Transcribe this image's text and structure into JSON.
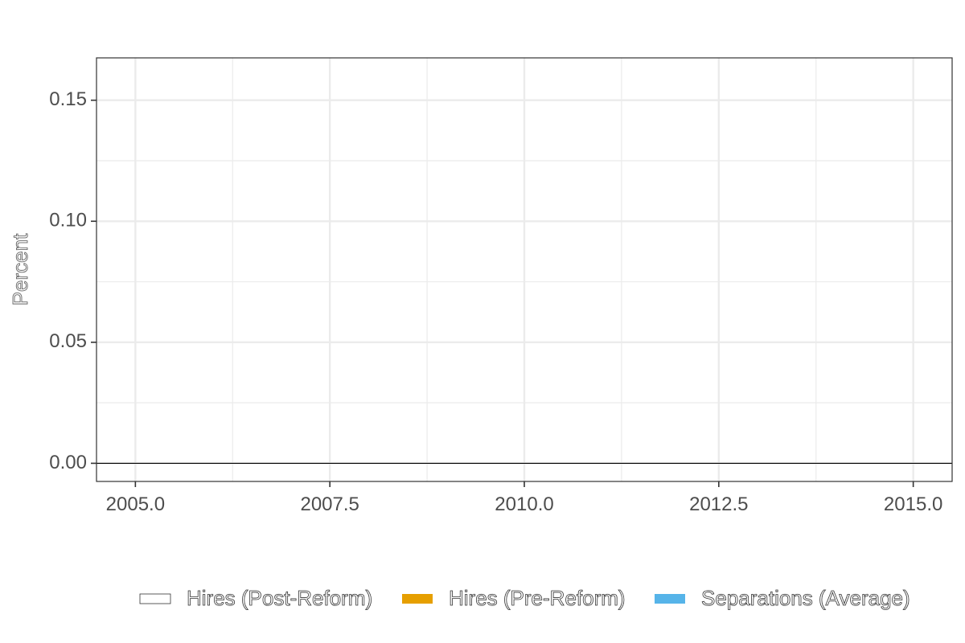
{
  "chart_data": {
    "type": "bar",
    "ylabel": "Percent",
    "xlim": [
      2004.5,
      2015.5
    ],
    "ylim": [
      -0.0075,
      0.1675
    ],
    "x_ticks": [
      2005.0,
      2007.5,
      2010.0,
      2012.5,
      2015.0
    ],
    "x_tick_labels": [
      "2005.0",
      "2007.5",
      "2010.0",
      "2012.5",
      "2015.0"
    ],
    "y_ticks": [
      0.0,
      0.05,
      0.1,
      0.15
    ],
    "y_tick_labels": [
      "0.00",
      "0.05",
      "0.10",
      "0.15"
    ],
    "grid": true,
    "baseline_y": 0.0,
    "legend_position": "bottom",
    "legend": [
      {
        "name": "Hires (Post-Reform)",
        "color": "#ffffff",
        "border": "#333333"
      },
      {
        "name": "Hires (Pre-Reform)",
        "color": "#e69f00"
      },
      {
        "name": "Separations (Average)",
        "color": "#56b4e9"
      }
    ],
    "series": [
      {
        "name": "Hires (Post-Reform)",
        "values": []
      },
      {
        "name": "Hires (Pre-Reform)",
        "values": []
      },
      {
        "name": "Separations (Average)",
        "values": []
      }
    ]
  }
}
